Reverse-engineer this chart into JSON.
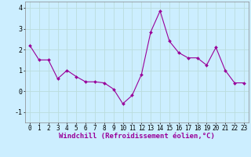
{
  "x": [
    0,
    1,
    2,
    3,
    4,
    5,
    6,
    7,
    8,
    9,
    10,
    11,
    12,
    13,
    14,
    15,
    16,
    17,
    18,
    19,
    20,
    21,
    22,
    23
  ],
  "y": [
    2.2,
    1.5,
    1.5,
    0.6,
    1.0,
    0.7,
    0.45,
    0.45,
    0.4,
    0.1,
    -0.6,
    -0.2,
    0.8,
    2.85,
    3.85,
    2.4,
    1.85,
    1.6,
    1.6,
    1.25,
    2.1,
    1.0,
    0.4,
    0.4
  ],
  "line_color": "#990099",
  "marker": "D",
  "marker_size": 2.0,
  "bg_color": "#cceeff",
  "grid_color": "#bbdddd",
  "xlabel": "Windchill (Refroidissement éolien,°C)",
  "xlabel_fontsize": 6.5,
  "tick_fontsize": 5.5,
  "ylim": [
    -1.5,
    4.3
  ],
  "yticks": [
    -1,
    0,
    1,
    2,
    3,
    4
  ],
  "xlim": [
    -0.5,
    23.5
  ],
  "xticks": [
    0,
    1,
    2,
    3,
    4,
    5,
    6,
    7,
    8,
    9,
    10,
    11,
    12,
    13,
    14,
    15,
    16,
    17,
    18,
    19,
    20,
    21,
    22,
    23
  ]
}
